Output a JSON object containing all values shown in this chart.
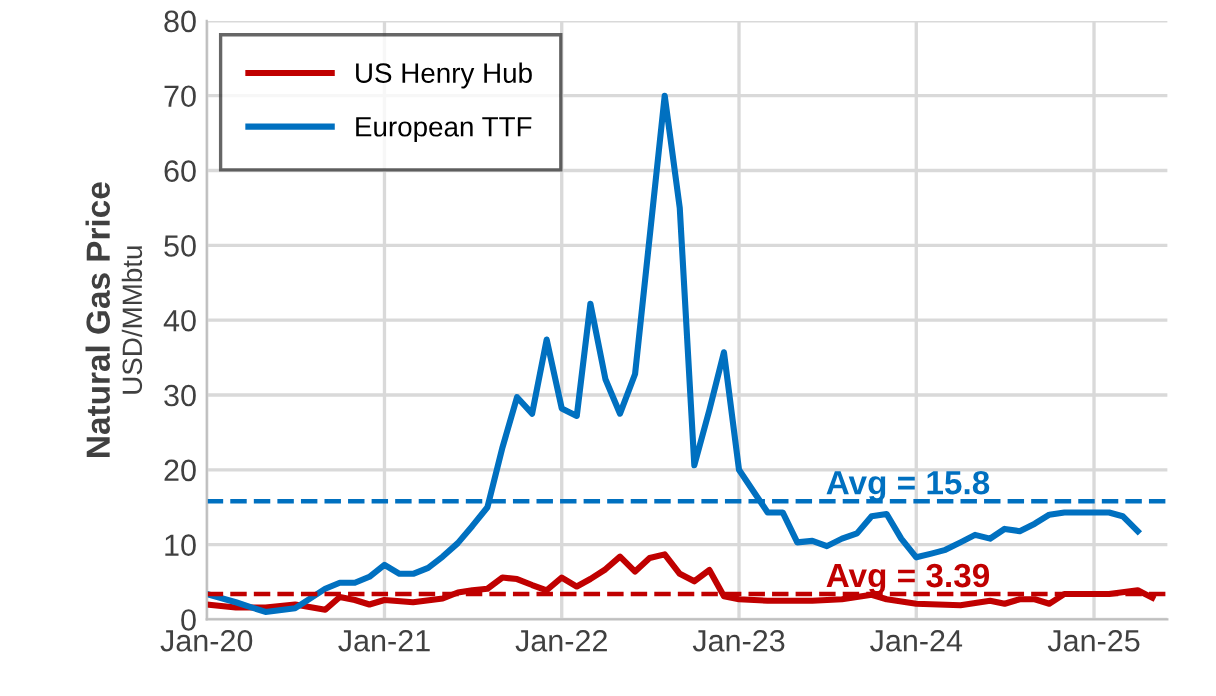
{
  "chart_data": {
    "type": "line",
    "ylabel": "Natural Gas Price\nUSD/MMbtu",
    "xlim": [
      "2020-01",
      "2025-06"
    ],
    "ylim": [
      0,
      80
    ],
    "yticks": [
      0,
      10,
      20,
      30,
      40,
      50,
      60,
      70,
      80
    ],
    "xticks": [
      {
        "value": "2020-01",
        "label": "Jan-20"
      },
      {
        "value": "2021-01",
        "label": "Jan-21"
      },
      {
        "value": "2022-01",
        "label": "Jan-22"
      },
      {
        "value": "2023-01",
        "label": "Jan-23"
      },
      {
        "value": "2024-01",
        "label": "Jan-24"
      },
      {
        "value": "2025-01",
        "label": "Jan-25"
      }
    ],
    "grid": true,
    "legend": "top left",
    "marker": "none",
    "line_style": "solid",
    "series": [
      {
        "name": "US Henry Hub",
        "color": "#c00000",
        "x": [
          "2020-01",
          "2020-03",
          "2020-05",
          "2020-07",
          "2020-09",
          "2020-10",
          "2020-11",
          "2020-12",
          "2021-01",
          "2021-03",
          "2021-05",
          "2021-06",
          "2021-07",
          "2021-08",
          "2021-09",
          "2021-10",
          "2021-11",
          "2021-12",
          "2022-01",
          "2022-02",
          "2022-03",
          "2022-04",
          "2022-05",
          "2022-06",
          "2022-07",
          "2022-08",
          "2022-09",
          "2022-10",
          "2022-11",
          "2022-12",
          "2023-01",
          "2023-03",
          "2023-06",
          "2023-08",
          "2023-10",
          "2023-11",
          "2024-01",
          "2024-04",
          "2024-06",
          "2024-07",
          "2024-08",
          "2024-09",
          "2024-10",
          "2024-11",
          "2025-01",
          "2025-02",
          "2025-04",
          "2025-05"
        ],
        "values": [
          2.0,
          1.6,
          1.6,
          2.0,
          1.3,
          3.0,
          2.6,
          2.0,
          2.6,
          2.3,
          2.8,
          3.6,
          3.9,
          4.1,
          5.6,
          5.4,
          4.6,
          3.9,
          5.6,
          4.4,
          5.4,
          6.7,
          8.4,
          6.4,
          8.2,
          8.7,
          6.1,
          5.1,
          6.6,
          3.1,
          2.7,
          2.5,
          2.5,
          2.7,
          3.3,
          2.7,
          2.1,
          1.9,
          2.5,
          2.1,
          2.7,
          2.7,
          2.1,
          3.4,
          3.4,
          3.4,
          3.9,
          2.9
        ]
      },
      {
        "name": "European TTF",
        "color": "#0070c0",
        "x": [
          "2020-01",
          "2020-03",
          "2020-05",
          "2020-07",
          "2020-09",
          "2020-10",
          "2020-11",
          "2020-12",
          "2021-01",
          "2021-02",
          "2021-03",
          "2021-04",
          "2021-05",
          "2021-06",
          "2021-07",
          "2021-08",
          "2021-09",
          "2021-10",
          "2021-11",
          "2021-12",
          "2022-01",
          "2022-02",
          "2022-03",
          "2022-04",
          "2022-05",
          "2022-06",
          "2022-08",
          "2022-09",
          "2022-10",
          "2022-11",
          "2022-12",
          "2023-01",
          "2023-02",
          "2023-03",
          "2023-04",
          "2023-05",
          "2023-06",
          "2023-07",
          "2023-08",
          "2023-09",
          "2023-10",
          "2023-11",
          "2023-12",
          "2024-01",
          "2024-02",
          "2024-03",
          "2024-04",
          "2024-05",
          "2024-06",
          "2024-07",
          "2024-08",
          "2024-09",
          "2024-10",
          "2024-11",
          "2024-12",
          "2025-01",
          "2025-02",
          "2025-03",
          "2025-04"
        ],
        "values": [
          3.4,
          2.3,
          1.0,
          1.5,
          4.1,
          4.9,
          4.9,
          5.7,
          7.3,
          6.1,
          6.1,
          6.9,
          8.4,
          10.2,
          12.5,
          15,
          23,
          29.7,
          27.5,
          37.4,
          28.2,
          27.2,
          42.2,
          32.1,
          27.5,
          32.8,
          70,
          55,
          20.6,
          28,
          35.7,
          20,
          17,
          14.3,
          14.3,
          10.3,
          10.5,
          9.8,
          10.8,
          11.5,
          13.8,
          14.1,
          10.8,
          8.3,
          8.8,
          9.3,
          10.3,
          11.3,
          10.8,
          12.1,
          11.8,
          12.8,
          14,
          14.3,
          14.3,
          14.3,
          14.3,
          13.8,
          11.8
        ]
      }
    ],
    "ref_lines": [
      {
        "axis": "y",
        "value": 15.8,
        "label": "Avg = 15.8",
        "color": "#0070c0",
        "line_style": "dashed"
      },
      {
        "axis": "y",
        "value": 3.39,
        "label": "Avg = 3.39",
        "color": "#c00000",
        "line_style": "dashed"
      }
    ]
  }
}
